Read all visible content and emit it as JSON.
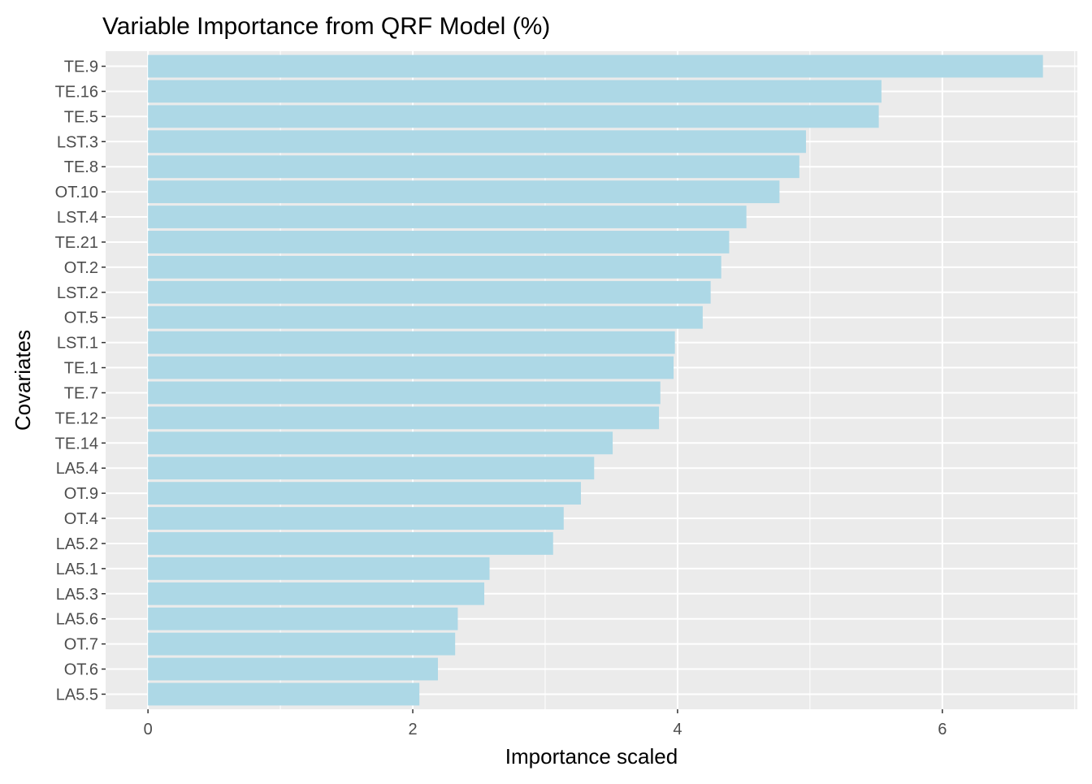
{
  "chart_data": {
    "type": "bar",
    "orientation": "horizontal",
    "title": "Variable Importance from QRF Model (%)",
    "xlabel": "Importance scaled",
    "ylabel": "Covariates",
    "xlim": [
      -0.32,
      7.02
    ],
    "x_ticks": [
      0,
      2,
      4,
      6
    ],
    "x_tick_labels": [
      "0",
      "2",
      "4",
      "6"
    ],
    "grid": true,
    "legend": "none",
    "colors": {
      "bar": "#add8e6",
      "panel": "#ebebeb",
      "grid": "#ffffff"
    },
    "categories": [
      "TE.9",
      "TE.16",
      "TE.5",
      "LST.3",
      "TE.8",
      "OT.10",
      "LST.4",
      "TE.21",
      "OT.2",
      "LST.2",
      "OT.5",
      "LST.1",
      "TE.1",
      "TE.7",
      "TE.12",
      "TE.14",
      "LA5.4",
      "OT.9",
      "OT.4",
      "LA5.2",
      "LA5.1",
      "LA5.3",
      "LA5.6",
      "OT.7",
      "OT.6",
      "LA5.5"
    ],
    "values": [
      6.76,
      5.54,
      5.52,
      4.97,
      4.92,
      4.77,
      4.52,
      4.39,
      4.33,
      4.25,
      4.19,
      3.98,
      3.97,
      3.87,
      3.86,
      3.51,
      3.37,
      3.27,
      3.14,
      3.06,
      2.58,
      2.54,
      2.34,
      2.32,
      2.19,
      2.05
    ]
  }
}
